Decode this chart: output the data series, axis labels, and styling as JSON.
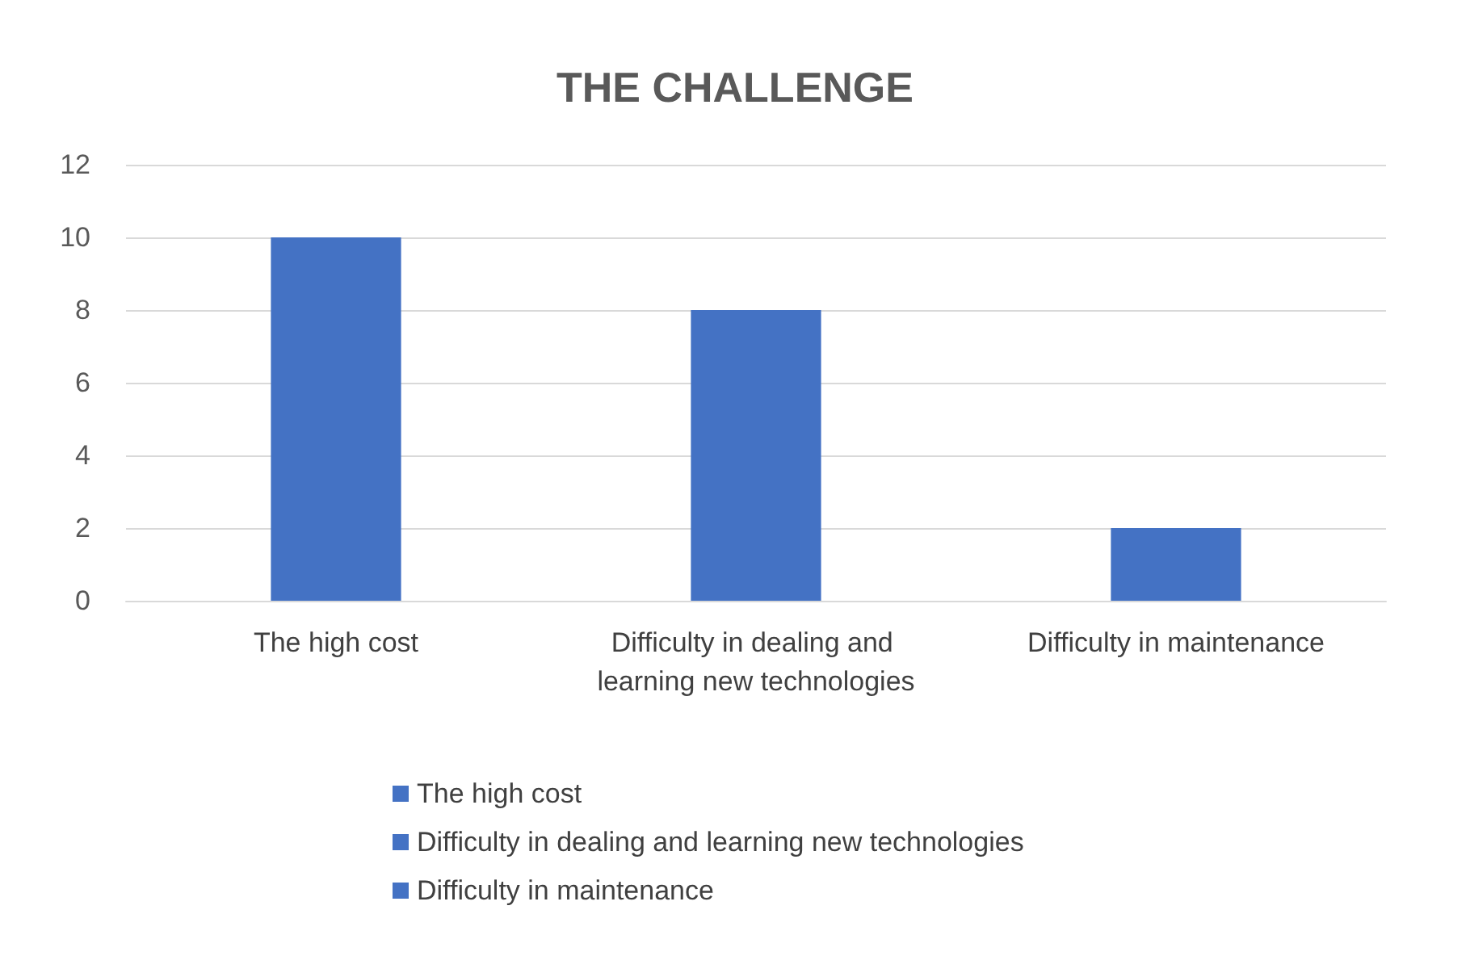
{
  "chart_data": {
    "type": "bar",
    "title": "THE CHALLENGE",
    "categories": [
      "The high cost",
      "Difficulty in dealing and learning new technologies",
      "Difficulty in maintenance"
    ],
    "series": [
      {
        "name": "The high cost",
        "color": "#4472c4",
        "values": [
          10,
          null,
          null
        ]
      },
      {
        "name": "Difficulty in dealing and learning new technologies",
        "color": "#4472c4",
        "values": [
          null,
          8,
          null
        ]
      },
      {
        "name": "Difficulty in maintenance",
        "color": "#4472c4",
        "values": [
          null,
          null,
          2
        ]
      }
    ],
    "ylim": [
      0,
      12
    ],
    "yticks": [
      0,
      2,
      4,
      6,
      8,
      10,
      12
    ],
    "grid": "y",
    "legend": "bottom"
  }
}
